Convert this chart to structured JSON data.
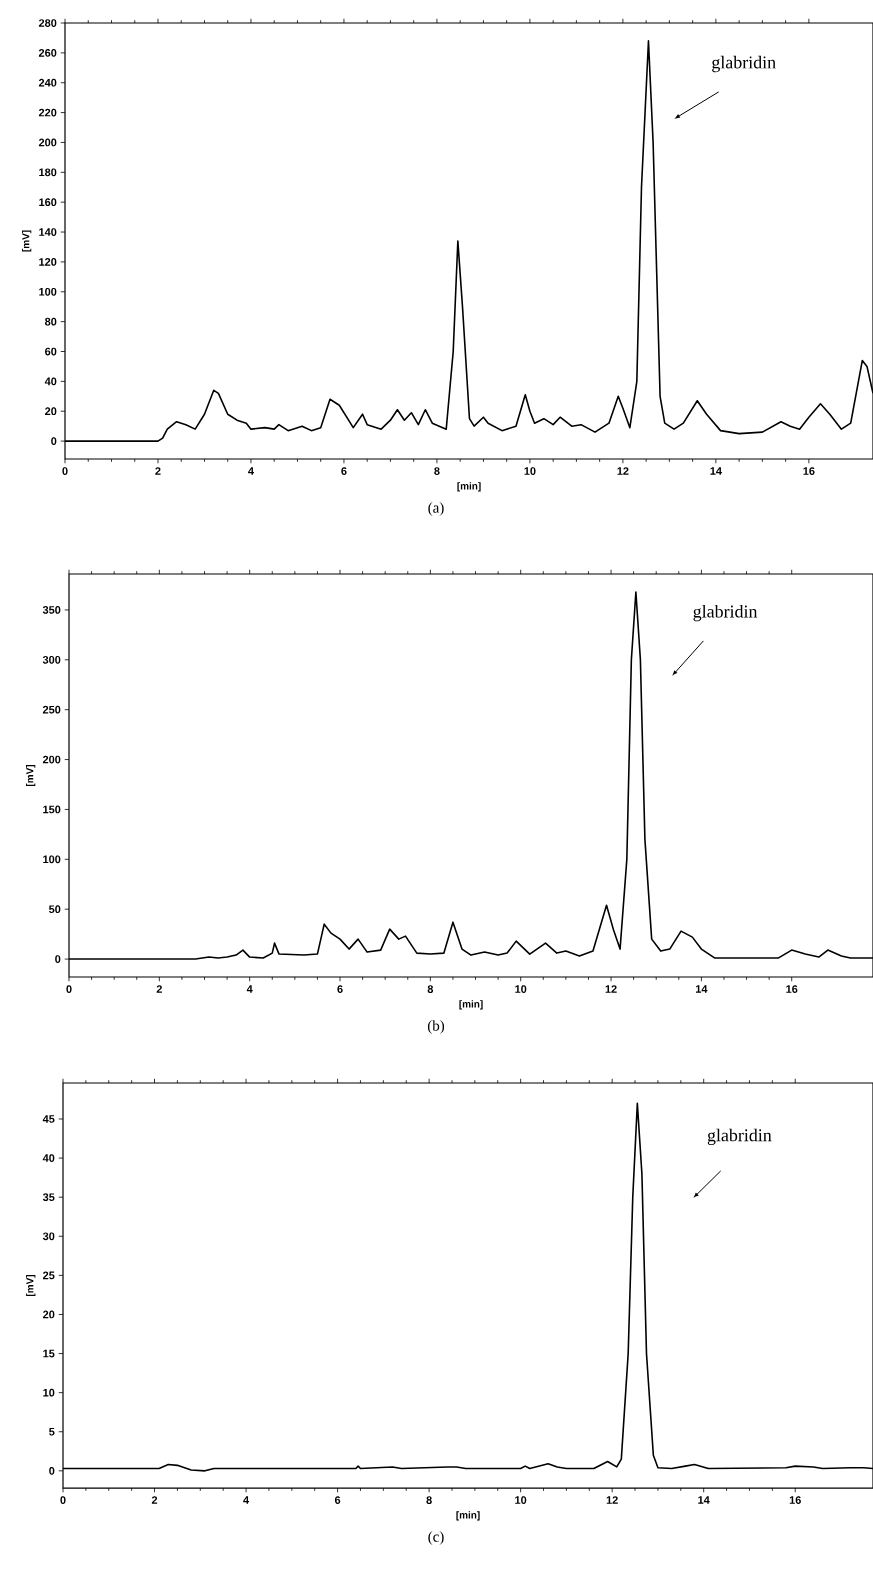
{
  "chart_data": [
    {
      "type": "line",
      "xlabel": "[min]",
      "ylabel": "[mV]",
      "color": "#000000",
      "x": [
        0,
        2.0,
        2.1,
        2.2,
        2.4,
        2.6,
        2.8,
        3.0,
        3.2,
        3.3,
        3.5,
        3.7,
        3.9,
        4.0,
        4.3,
        4.5,
        4.6,
        4.8,
        5.1,
        5.3,
        5.5,
        5.7,
        5.9,
        6.1,
        6.2,
        6.4,
        6.5,
        6.8,
        7.0,
        7.15,
        7.3,
        7.45,
        7.6,
        7.75,
        7.9,
        8.2,
        8.35,
        8.45,
        8.55,
        8.7,
        8.8,
        9.0,
        9.1,
        9.4,
        9.7,
        9.9,
        10.0,
        10.1,
        10.3,
        10.5,
        10.65,
        10.9,
        11.1,
        11.4,
        11.7,
        11.9,
        12.0,
        12.15,
        12.3,
        12.4,
        12.55,
        12.65,
        12.8,
        12.9,
        13.1,
        13.3,
        13.6,
        13.8,
        14.1,
        14.5,
        15.0,
        15.4,
        15.6,
        15.8,
        16.0,
        16.25,
        16.45,
        16.7,
        16.9,
        17.15,
        17.25,
        17.38
      ],
      "values": [
        0,
        0,
        2,
        8,
        13,
        11,
        8,
        18,
        34,
        32,
        18,
        14,
        12,
        8,
        9,
        8,
        11,
        7,
        10,
        7,
        9,
        28,
        24,
        14,
        9,
        18,
        11,
        8,
        14,
        21,
        14,
        19,
        11,
        21,
        12,
        8,
        60,
        134,
        90,
        15,
        10,
        16,
        12,
        7,
        10,
        31,
        20,
        12,
        15,
        11,
        16,
        10,
        11,
        6,
        12,
        30,
        22,
        9,
        40,
        170,
        268,
        200,
        30,
        12,
        8,
        12,
        27,
        18,
        7,
        5,
        6,
        13,
        10,
        8,
        16,
        25,
        18,
        8,
        12,
        54,
        50,
        32
      ],
      "xlim": [
        0,
        17.38
      ],
      "ylim": [
        -12,
        280
      ],
      "xticks": [
        0,
        2,
        4,
        6,
        8,
        10,
        12,
        14,
        16
      ],
      "yticks": [
        0,
        20,
        40,
        60,
        80,
        100,
        120,
        140,
        160,
        180,
        200,
        220,
        240,
        260,
        280
      ],
      "annotations": [
        "glabridin",
        "(a)"
      ]
    },
    {
      "type": "line",
      "xlabel": "[min]",
      "ylabel": "[mV]",
      "color": "#000000",
      "x": [
        0,
        2.8,
        3.1,
        3.3,
        3.5,
        3.7,
        3.85,
        4.0,
        4.3,
        4.5,
        4.55,
        4.65,
        5.2,
        5.5,
        5.65,
        5.8,
        6.0,
        6.2,
        6.4,
        6.6,
        6.9,
        7.1,
        7.3,
        7.45,
        7.7,
        8.0,
        8.3,
        8.5,
        8.7,
        8.9,
        9.2,
        9.5,
        9.7,
        9.9,
        10.2,
        10.55,
        10.8,
        11.0,
        11.3,
        11.6,
        11.9,
        12.05,
        12.2,
        12.35,
        12.45,
        12.55,
        12.65,
        12.75,
        12.9,
        13.1,
        13.3,
        13.55,
        13.8,
        14.0,
        14.3,
        15.7,
        16.0,
        16.3,
        16.6,
        16.8,
        17.1,
        17.3,
        17.8
      ],
      "values": [
        0,
        0,
        2,
        1,
        2,
        4,
        9,
        2,
        1,
        6,
        16,
        5,
        4,
        5,
        35,
        26,
        20,
        10,
        20,
        7,
        9,
        30,
        20,
        23,
        6,
        5,
        6,
        37,
        10,
        4,
        7,
        4,
        6,
        18,
        5,
        16,
        6,
        8,
        3,
        8,
        54,
        30,
        10,
        100,
        300,
        368,
        300,
        120,
        20,
        8,
        10,
        28,
        22,
        10,
        1,
        1,
        9,
        5,
        2,
        9,
        3,
        1,
        1
      ],
      "xlim": [
        0,
        17.8
      ],
      "ylim": [
        -18,
        386
      ],
      "xticks": [
        0,
        2,
        4,
        6,
        8,
        10,
        12,
        14,
        16
      ],
      "yticks": [
        0,
        50,
        100,
        150,
        200,
        250,
        300,
        350
      ],
      "annotations": [
        "glabridin",
        "(b)"
      ]
    },
    {
      "type": "line",
      "xlabel": "[min]",
      "ylabel": "[mV]",
      "color": "#000000",
      "x": [
        0,
        2.1,
        2.3,
        2.5,
        2.8,
        3.1,
        3.3,
        6.4,
        6.45,
        6.5,
        7.2,
        7.4,
        8.4,
        8.6,
        8.8,
        10.0,
        10.1,
        10.2,
        10.6,
        10.8,
        11.0,
        11.6,
        11.9,
        12.1,
        12.2,
        12.35,
        12.45,
        12.55,
        12.65,
        12.75,
        12.9,
        13.0,
        13.3,
        13.6,
        13.8,
        14.1,
        15.8,
        16.0,
        16.4,
        16.6,
        17.2,
        17.5,
        17.7
      ],
      "values": [
        0.3,
        0.3,
        0.8,
        0.7,
        0.1,
        0.0,
        0.3,
        0.3,
        0.6,
        0.3,
        0.5,
        0.3,
        0.5,
        0.5,
        0.3,
        0.3,
        0.6,
        0.3,
        0.9,
        0.5,
        0.3,
        0.3,
        1.2,
        0.5,
        1.5,
        15,
        35,
        47,
        38,
        15,
        2,
        0.4,
        0.3,
        0.6,
        0.8,
        0.3,
        0.4,
        0.6,
        0.5,
        0.3,
        0.4,
        0.4,
        0.3
      ],
      "xlim": [
        0,
        17.7
      ],
      "ylim": [
        -2.2,
        49.6
      ],
      "xticks": [
        0,
        2,
        4,
        6,
        8,
        10,
        12,
        14,
        16
      ],
      "yticks": [
        0,
        5,
        10,
        15,
        20,
        25,
        30,
        35,
        40,
        45
      ],
      "annotations": [
        "glabridin",
        "(c)"
      ]
    }
  ]
}
